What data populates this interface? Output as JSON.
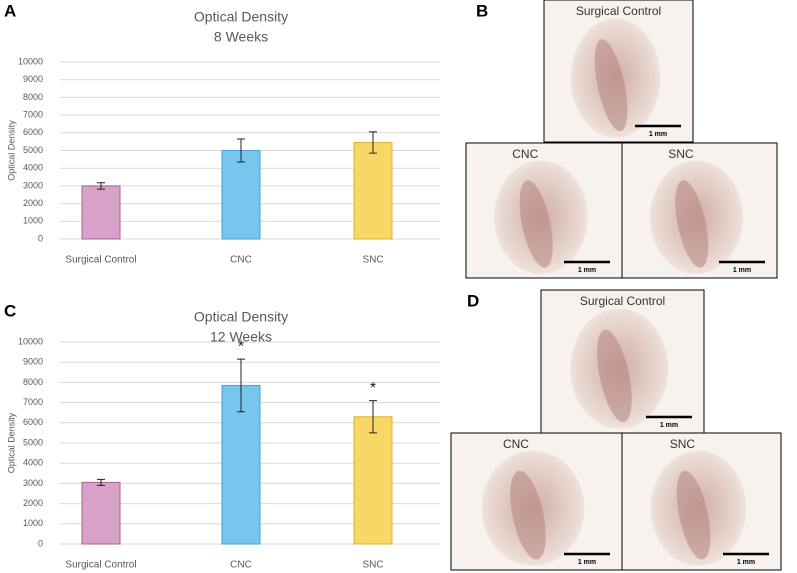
{
  "chart_data": [
    {
      "type": "bar",
      "panel": "A",
      "title": "Optical Density",
      "subtitle": "8 Weeks",
      "y_label": "Optical Density",
      "categories": [
        "Surgical Control",
        "CNC",
        "SNC"
      ],
      "values": [
        3000,
        5000,
        5450
      ],
      "errors": [
        180,
        650,
        600
      ],
      "colors": [
        "#d7a1c8",
        "#76c6ee",
        "#f8d766"
      ],
      "edge_colors": [
        "#a8609e",
        "#4b9fd2",
        "#d6b13a"
      ],
      "ylim": [
        0,
        10000
      ],
      "yticks": [
        0,
        1000,
        2000,
        3000,
        4000,
        5000,
        6000,
        7000,
        8000,
        9000,
        10000
      ],
      "grid": true
    },
    {
      "type": "bar",
      "panel": "C",
      "title": "Optical Density",
      "subtitle": "12 Weeks",
      "y_label": "Optical Density",
      "categories": [
        "Surgical Control",
        "CNC",
        "SNC"
      ],
      "values": [
        3050,
        7850,
        6300
      ],
      "errors": [
        150,
        1300,
        800
      ],
      "annotations": [
        null,
        "*",
        "*"
      ],
      "colors": [
        "#d7a1c8",
        "#76c6ee",
        "#f8d766"
      ],
      "edge_colors": [
        "#a8609e",
        "#4b9fd2",
        "#d6b13a"
      ],
      "ylim": [
        0,
        10000
      ],
      "yticks": [
        0,
        1000,
        2000,
        3000,
        4000,
        5000,
        6000,
        7000,
        8000,
        9000,
        10000
      ],
      "grid": true
    }
  ],
  "panels": [
    {
      "label": "B",
      "images": [
        {
          "caption": "Surgical Control",
          "scale": "1 mm"
        },
        {
          "caption": "CNC",
          "scale": "1 mm"
        },
        {
          "caption": "SNC",
          "scale": "1 mm"
        }
      ]
    },
    {
      "label": "D",
      "images": [
        {
          "caption": "Surgical Control",
          "scale": "1 mm"
        },
        {
          "caption": "CNC",
          "scale": "1 mm"
        },
        {
          "caption": "SNC",
          "scale": "1 mm"
        }
      ]
    }
  ]
}
